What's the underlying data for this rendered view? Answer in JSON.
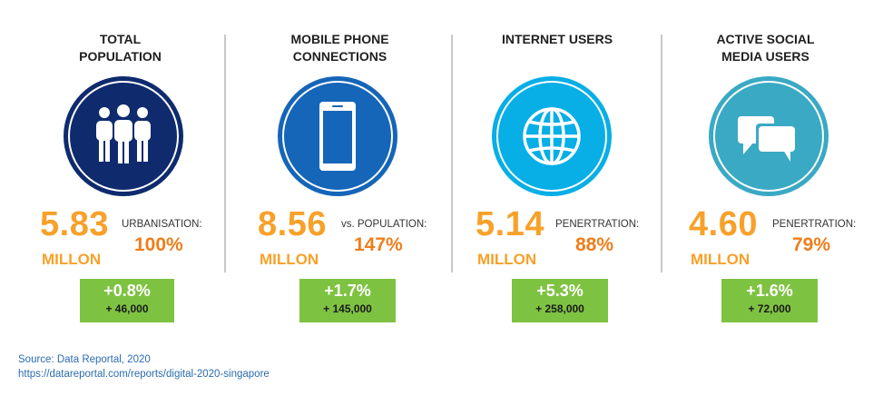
{
  "stats": [
    {
      "title": "TOTAL\nPOPULATION",
      "value": "5.83",
      "unit": "MILLON",
      "ratio_label": "URBANISATION:",
      "ratio_value": "100%",
      "change_pct": "+0.8%",
      "change_abs": "+ 46,000",
      "icon": "people-icon",
      "circle_color": "#0f2b6e"
    },
    {
      "title": "MOBILE PHONE\nCONNECTIONS",
      "value": "8.56",
      "unit": "MILLON",
      "ratio_label": "vs. POPULATION:",
      "ratio_value": "147%",
      "change_pct": "+1.7%",
      "change_abs": "+ 145,000",
      "icon": "mobile-phone-icon",
      "circle_color": "#1565b8"
    },
    {
      "title": "INTERNET USERS",
      "value": "5.14",
      "unit": "MILLON",
      "ratio_label": "PENERTRATION:",
      "ratio_value": "88%",
      "change_pct": "+5.3%",
      "change_abs": "+ 258,000",
      "icon": "globe-icon",
      "circle_color": "#08aee6"
    },
    {
      "title": "ACTIVE SOCIAL\nMEDIA USERS",
      "value": "4.60",
      "unit": "MILLON",
      "ratio_label": "PENERTRATION:",
      "ratio_value": "79%",
      "change_pct": "+1.6%",
      "change_abs": "+ 72,000",
      "icon": "chat-bubbles-icon",
      "circle_color": "#3aa9c4"
    }
  ],
  "source": {
    "line1": "Source: Data Reportal, 2020",
    "line2": "https://datareportal.com/reports/digital-2020-singapore"
  }
}
